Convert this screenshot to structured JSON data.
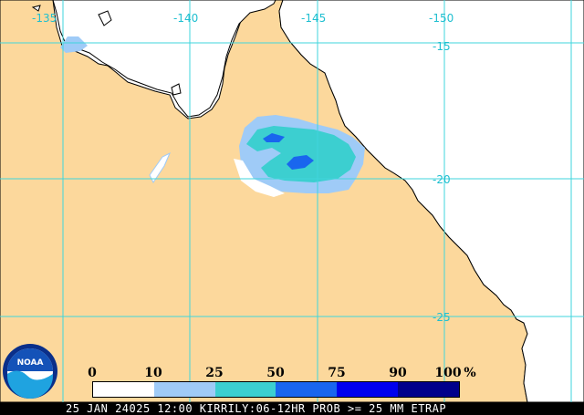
{
  "map": {
    "longitude_labels": [
      "-135",
      "-140",
      "-145",
      "-150"
    ],
    "latitude_labels": [
      "-15",
      "-20",
      "-25"
    ],
    "colors": {
      "land": "#fcd89c",
      "ocean": "#ffffff",
      "grid": "#3fd6dc",
      "coast": "#000000"
    }
  },
  "legend": {
    "labels": [
      "0",
      "10",
      "25",
      "50",
      "75",
      "90",
      "100",
      "%"
    ],
    "bins": [
      {
        "range": "0-10",
        "color": "#ffffff"
      },
      {
        "range": "10-25",
        "color": "#9fcbf7"
      },
      {
        "range": "25-50",
        "color": "#3ccfd0"
      },
      {
        "range": "50-75",
        "color": "#1966ee"
      },
      {
        "range": "75-90",
        "color": "#0000ee"
      },
      {
        "range": "90-100",
        "color": "#00008b"
      }
    ]
  },
  "footer": {
    "text": "25 JAN 24025 12:00 KIRRILY:06-12HR PROB >= 25 MM ETRAP"
  },
  "logo": {
    "text": "NOAA",
    "icon": "noaa-logo-icon"
  }
}
